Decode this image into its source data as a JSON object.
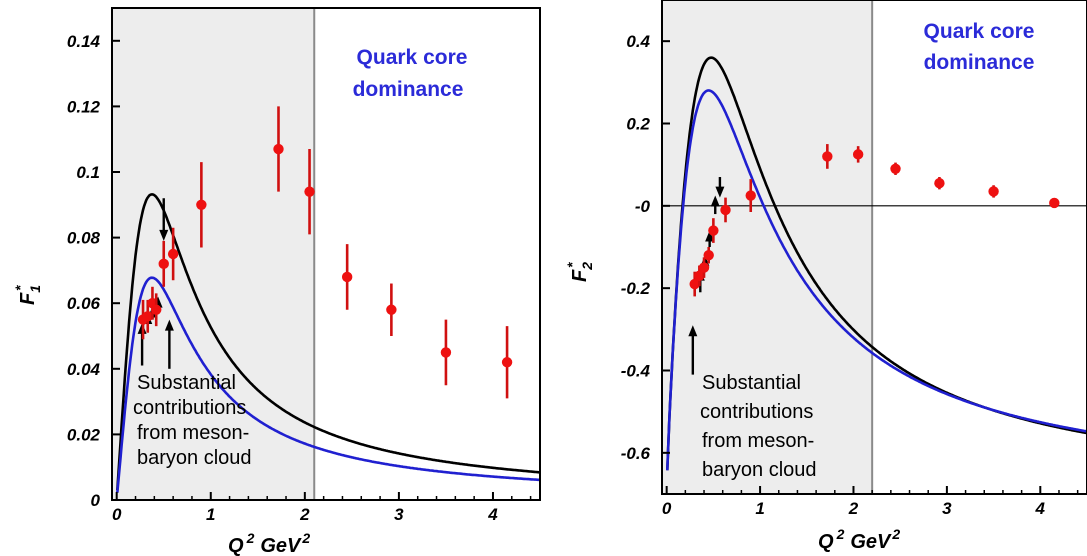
{
  "colors": {
    "data_points": "#ee1111",
    "error_bars": "#d01010",
    "black_curve": "#000000",
    "blue_curve": "#2020d0",
    "shade": "#ededed",
    "label_blue": "#2b2bd8"
  },
  "chart_data": [
    {
      "type": "scatter",
      "ylabel": "F",
      "ylabel_sub": "1",
      "ylabel_sup": "*",
      "xlabel_main": "Q",
      "xlabel_sup": "2",
      "xlabel_unit": "GeV",
      "xlabel_unit_sup": "2",
      "xlim": [
        -0.05,
        4.5
      ],
      "ylim": [
        0,
        0.15
      ],
      "xticks": [
        "0",
        "1",
        "2",
        "3",
        "4"
      ],
      "yticks": [
        "0",
        "0.02",
        "0.04",
        "0.06",
        "0.08",
        "0.1",
        "0.12",
        "0.14"
      ],
      "ytick_values": [
        0,
        0.02,
        0.04,
        0.06,
        0.08,
        0.1,
        0.12,
        0.14
      ],
      "shaded_region": [
        -0.05,
        2.1
      ],
      "region_label": [
        "Quark core",
        "dominance"
      ],
      "note": [
        "Substantial",
        "contributions",
        "from meson-",
        "baryon cloud"
      ],
      "series": [
        {
          "kind": "points",
          "x": [
            0.28,
            0.33,
            0.38,
            0.42,
            0.5,
            0.6,
            0.9,
            1.72,
            2.05,
            2.45,
            2.92,
            3.5,
            4.15
          ],
          "y": [
            0.055,
            0.056,
            0.06,
            0.058,
            0.072,
            0.075,
            0.09,
            0.107,
            0.094,
            0.068,
            0.058,
            0.045,
            0.042
          ],
          "err": [
            0.006,
            0.005,
            0.005,
            0.005,
            0.007,
            0.008,
            0.013,
            0.013,
            0.013,
            0.01,
            0.008,
            0.01,
            0.011
          ]
        },
        {
          "kind": "arrows",
          "x": [
            0.27,
            0.33,
            0.38,
            0.44,
            0.5,
            0.56
          ],
          "y_tip": [
            0.054,
            0.057,
            0.059,
            0.062,
            0.079,
            0.055
          ],
          "y_tail": [
            0.041,
            0.052,
            0.055,
            0.058,
            0.092,
            0.04
          ]
        }
      ]
    },
    {
      "type": "scatter",
      "ylabel": "F",
      "ylabel_sub": "2",
      "ylabel_sup": "*",
      "xlabel_main": "Q",
      "xlabel_sup": "2",
      "xlabel_unit": "GeV",
      "xlabel_unit_sup": "2",
      "xlim": [
        -0.05,
        4.5
      ],
      "ylim": [
        -0.7,
        0.5
      ],
      "xticks": [
        "0",
        "1",
        "2",
        "3",
        "4"
      ],
      "yticks": [
        "-0.6",
        "-0.4",
        "-0.2",
        "-0",
        "0.2",
        "0.4"
      ],
      "ytick_values": [
        -0.6,
        -0.4,
        -0.2,
        0,
        0.2,
        0.4
      ],
      "shaded_region": [
        -0.05,
        2.2
      ],
      "region_label": [
        "Quark core",
        "dominance"
      ],
      "note": [
        "Substantial",
        "contributions",
        "from meson-",
        "baryon cloud"
      ],
      "series": [
        {
          "kind": "points",
          "x": [
            0.3,
            0.35,
            0.4,
            0.45,
            0.5,
            0.63,
            0.9,
            1.72,
            2.05,
            2.45,
            2.92,
            3.5,
            4.15
          ],
          "y": [
            -0.19,
            -0.17,
            -0.15,
            -0.12,
            -0.06,
            -0.01,
            0.025,
            0.12,
            0.125,
            0.09,
            0.055,
            0.035,
            0.007
          ],
          "err": [
            0.03,
            0.025,
            0.025,
            0.02,
            0.03,
            0.03,
            0.04,
            0.03,
            0.02,
            0.015,
            0.015,
            0.015,
            0.01
          ]
        },
        {
          "kind": "arrows",
          "x": [
            0.28,
            0.36,
            0.41,
            0.46,
            0.52,
            0.57
          ],
          "y_tip": [
            -0.29,
            -0.155,
            -0.12,
            -0.06,
            0.025,
            0.02
          ],
          "y_tail": [
            -0.41,
            -0.21,
            -0.16,
            -0.1,
            -0.02,
            0.07
          ]
        }
      ]
    }
  ]
}
